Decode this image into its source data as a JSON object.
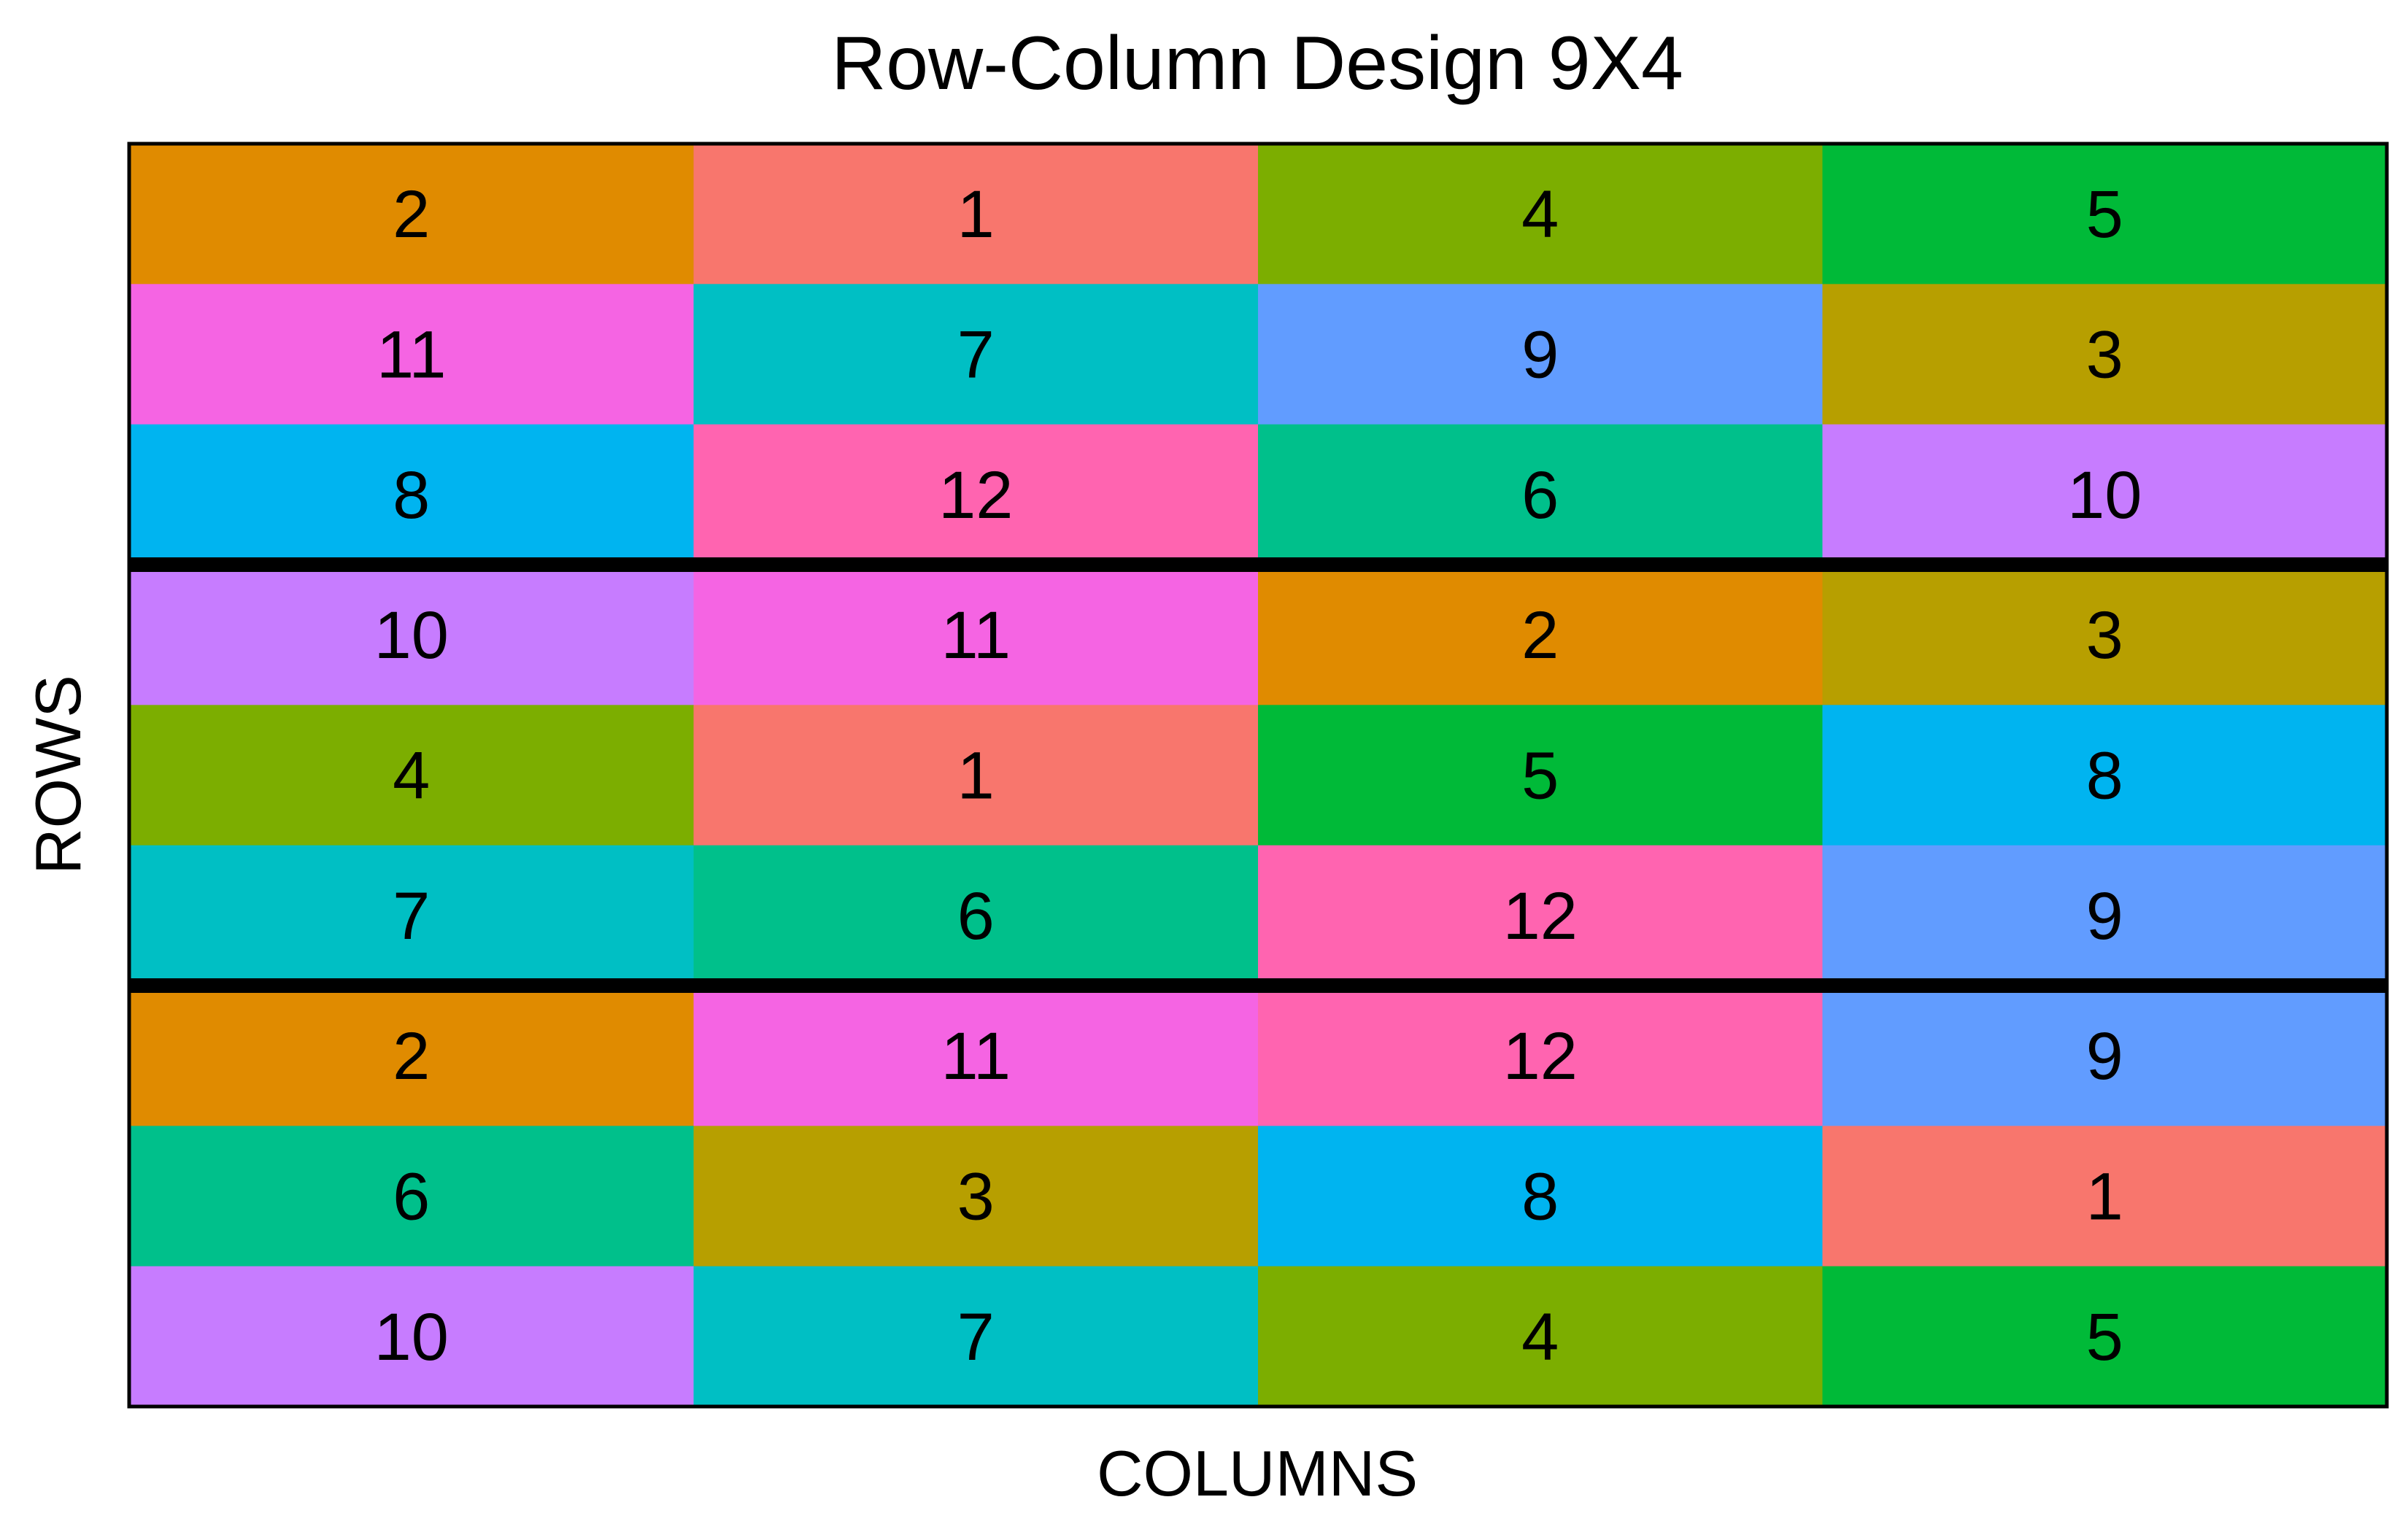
{
  "chart_data": {
    "type": "heatmap",
    "title": "Row-Column Design 9X4",
    "xlabel": "COLUMNS",
    "ylabel": "ROWS",
    "n_rows": 9,
    "n_cols": 4,
    "block_size": 3,
    "grid": false,
    "legend": "none",
    "rows": [
      [
        2,
        1,
        4,
        5
      ],
      [
        11,
        7,
        9,
        3
      ],
      [
        8,
        12,
        6,
        10
      ],
      [
        10,
        11,
        2,
        3
      ],
      [
        4,
        1,
        5,
        8
      ],
      [
        7,
        6,
        12,
        9
      ],
      [
        2,
        11,
        12,
        9
      ],
      [
        6,
        3,
        8,
        1
      ],
      [
        10,
        7,
        4,
        5
      ]
    ],
    "treatment_colors": {
      "1": "#F8766D",
      "2": "#E08B00",
      "3": "#B79F00",
      "4": "#7CAE00",
      "5": "#00BA38",
      "6": "#00C08B",
      "7": "#00BFC4",
      "8": "#00B4F0",
      "9": "#619CFF",
      "10": "#C77CFF",
      "11": "#F564E3",
      "12": "#FF64B0"
    }
  }
}
